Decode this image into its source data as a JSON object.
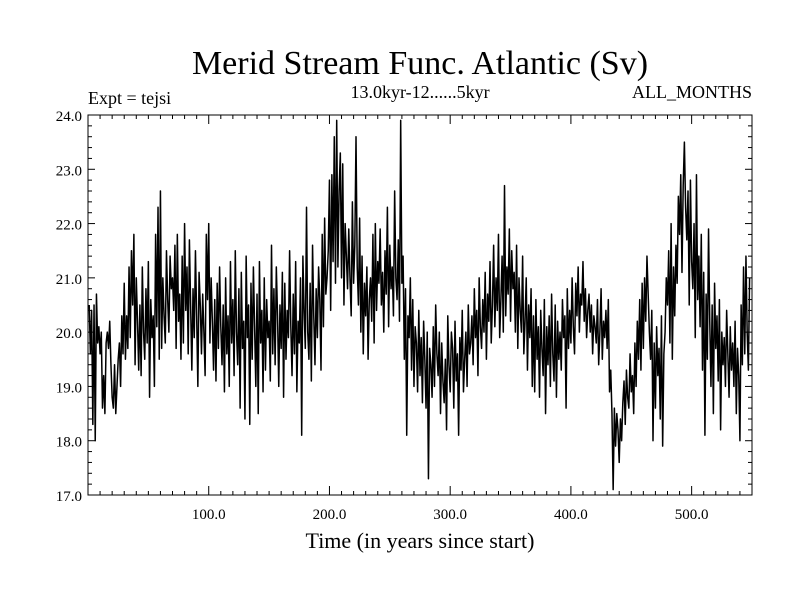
{
  "chart_data": {
    "type": "line",
    "title": "Merid Stream Func. Atlantic (Sv)",
    "subtitle": "13.0kyr-12......5kyr",
    "left_label": "Expt = tejsi",
    "right_label": "ALL_MONTHS",
    "xlabel": "Time (in years since start)",
    "ylabel": "",
    "xlim": [
      0,
      550
    ],
    "ylim": [
      17.0,
      24.0
    ],
    "xticks": [
      100,
      200,
      300,
      400,
      500
    ],
    "xtick_labels": [
      "100.0",
      "200.0",
      "300.0",
      "400.0",
      "500.0"
    ],
    "yticks": [
      17,
      18,
      19,
      20,
      21,
      22,
      23,
      24
    ],
    "ytick_labels": [
      "17.0",
      "18.0",
      "19.0",
      "20.0",
      "21.0",
      "22.0",
      "23.0",
      "24.0"
    ],
    "grid": false,
    "series": [
      {
        "name": "Merid Stream Func. Atlantic",
        "color": "#000000",
        "x_start": 1,
        "x_step": 1,
        "values": [
          20.5,
          19.6,
          20.4,
          18.3,
          20.5,
          18.0,
          20.7,
          19.8,
          20.1,
          19.6,
          20.0,
          18.6,
          19.2,
          18.5,
          19.8,
          20.0,
          19.7,
          20.2,
          19.4,
          18.8,
          18.6,
          19.4,
          18.5,
          19.0,
          19.5,
          19.8,
          19.0,
          20.3,
          19.6,
          20.9,
          19.5,
          20.3,
          19.7,
          21.2,
          19.9,
          21.5,
          20.5,
          21.8,
          19.4,
          21.0,
          20.2,
          19.3,
          20.5,
          19.2,
          21.2,
          20.0,
          19.5,
          20.8,
          19.8,
          21.3,
          18.8,
          20.6,
          19.9,
          20.3,
          19.0,
          21.8,
          20.1,
          22.3,
          19.5,
          22.6,
          19.7,
          21.0,
          20.3,
          19.8,
          21.5,
          20.6,
          20.0,
          21.4,
          20.8,
          21.0,
          20.4,
          21.6,
          19.7,
          21.8,
          20.2,
          20.7,
          19.5,
          21.4,
          19.8,
          22.0,
          20.4,
          21.2,
          19.6,
          21.7,
          20.5,
          19.3,
          20.8,
          19.9,
          21.5,
          20.3,
          19.0,
          21.1,
          20.5,
          19.6,
          20.7,
          20.0,
          19.2,
          21.8,
          20.6,
          22.0,
          19.8,
          21.0,
          20.2,
          19.3,
          20.6,
          19.1,
          20.9,
          19.7,
          21.2,
          20.1,
          19.4,
          20.5,
          18.9,
          21.0,
          19.6,
          20.3,
          19.0,
          21.3,
          19.8,
          20.6,
          19.2,
          21.5,
          20.0,
          19.4,
          20.8,
          18.6,
          21.1,
          19.7,
          20.2,
          18.4,
          21.4,
          19.9,
          20.5,
          18.3,
          20.9,
          19.5,
          21.2,
          20.1,
          19.0,
          20.7,
          18.5,
          21.3,
          19.8,
          20.4,
          18.9,
          21.0,
          19.3,
          20.6,
          19.9,
          20.2,
          19.1,
          21.6,
          19.6,
          20.8,
          19.4,
          21.2,
          20.3,
          19.0,
          20.5,
          19.7,
          21.1,
          18.8,
          20.9,
          19.5,
          20.4,
          19.9,
          21.5,
          20.1,
          19.2,
          20.7,
          19.6,
          21.3,
          18.9,
          20.2,
          19.8,
          21.0,
          18.1,
          21.4,
          20.4,
          19.7,
          22.3,
          20.0,
          19.5,
          20.9,
          19.1,
          21.6,
          20.3,
          19.4,
          20.8,
          19.9,
          21.2,
          20.6,
          19.3,
          21.8,
          20.1,
          22.1,
          20.7,
          21.0,
          21.5,
          22.8,
          20.4,
          22.9,
          21.3,
          23.6,
          20.9,
          23.9,
          21.2,
          22.6,
          23.3,
          21.0,
          23.1,
          20.5,
          22.0,
          21.4,
          20.8,
          21.9,
          21.0,
          20.3,
          22.4,
          20.9,
          21.6,
          23.6,
          21.2,
          20.5,
          22.1,
          20.0,
          21.4,
          19.6,
          20.9,
          20.3,
          21.2,
          19.5,
          20.6,
          21.0,
          20.2,
          21.8,
          19.8,
          22.0,
          20.4,
          21.3,
          20.9,
          21.9,
          20.5,
          21.1,
          20.0,
          21.5,
          20.7,
          22.3,
          20.1,
          21.6,
          20.8,
          21.2,
          20.3,
          22.6,
          21.0,
          20.6,
          21.7,
          20.2,
          23.9,
          20.9,
          21.4,
          19.5,
          20.8,
          18.1,
          20.3,
          19.9,
          21.0,
          19.3,
          20.6,
          19.0,
          20.1,
          19.8,
          18.9,
          20.4,
          19.2,
          19.9,
          18.7,
          20.2,
          19.5,
          18.6,
          20.0,
          17.3,
          19.7,
          19.4,
          18.8,
          20.1,
          19.0,
          20.5,
          19.6,
          19.2,
          20.0,
          18.5,
          19.8,
          19.1,
          18.7,
          19.5,
          18.2,
          20.3,
          19.4,
          18.9,
          20.0,
          19.7,
          18.6,
          20.2,
          19.1,
          19.6,
          18.1,
          19.9,
          19.3,
          20.4,
          18.9,
          19.5,
          20.0,
          19.0,
          20.5,
          19.6,
          19.8,
          20.3,
          19.4,
          20.8,
          19.9,
          20.4,
          19.2,
          21.0,
          20.1,
          19.7,
          20.6,
          20.0,
          21.1,
          19.5,
          20.7,
          20.2,
          21.3,
          19.8,
          20.5,
          21.6,
          20.1,
          21.0,
          20.4,
          21.8,
          19.9,
          20.6,
          21.4,
          20.0,
          22.7,
          20.3,
          21.2,
          20.7,
          21.9,
          20.2,
          21.5,
          20.8,
          21.1,
          20.0,
          21.6,
          19.7,
          21.0,
          20.4,
          20.0,
          21.4,
          19.6,
          20.2,
          21.0,
          19.3,
          20.5,
          19.9,
          20.8,
          19.0,
          20.3,
          18.9,
          20.6,
          19.5,
          20.1,
          18.8,
          20.4,
          19.7,
          19.2,
          20.6,
          18.5,
          20.1,
          19.4,
          20.3,
          19.0,
          20.7,
          19.6,
          19.1,
          20.5,
          18.8,
          20.2,
          19.5,
          20.0,
          19.3,
          20.6,
          19.9,
          20.3,
          18.6,
          20.8,
          19.7,
          20.4,
          19.8,
          21.0,
          20.1,
          19.6,
          20.9,
          20.3,
          21.2,
          20.0,
          20.7,
          20.5,
          21.3,
          20.2,
          20.8,
          19.9,
          20.4,
          20.7,
          20.0,
          20.5,
          19.6,
          20.3,
          20.1,
          19.8,
          20.6,
          19.4,
          20.0,
          20.8,
          19.5,
          20.2,
          19.9,
          20.4,
          19.7,
          20.6,
          18.9,
          19.3,
          18.5,
          17.1,
          18.6,
          17.9,
          18.5,
          18.2,
          17.6,
          18.4,
          18.0,
          18.7,
          19.1,
          18.3,
          19.3,
          18.8,
          18.6,
          19.6,
          18.9,
          19.2,
          18.5,
          19.8,
          19.0,
          20.2,
          19.5,
          20.6,
          19.3,
          20.9,
          19.7,
          21.0,
          20.2,
          21.4,
          20.7,
          20.0,
          19.5,
          20.4,
          18.0,
          19.8,
          18.6,
          20.1,
          19.2,
          19.7,
          18.4,
          20.3,
          17.9,
          19.6,
          20.0,
          21.0,
          20.5,
          21.5,
          19.8,
          22.0,
          19.5,
          21.2,
          20.3,
          21.6,
          20.9,
          22.5,
          21.8,
          22.9,
          21.1,
          22.7,
          23.5,
          22.3,
          21.7,
          22.6,
          20.5,
          22.8,
          21.3,
          20.8,
          22.0,
          19.9,
          22.9,
          20.6,
          21.4,
          20.1,
          21.8,
          19.3,
          21.1,
          18.1,
          20.7,
          19.5,
          21.9,
          20.2,
          19.0,
          20.5,
          18.5,
          20.9,
          19.7,
          20.3,
          19.1,
          20.6,
          18.2,
          20.0,
          19.4,
          19.9,
          19.0,
          20.4,
          19.6,
          18.8,
          20.1,
          19.3,
          19.8,
          19.0,
          20.2,
          18.5,
          19.7,
          19.2,
          18.0,
          20.5,
          19.4,
          21.2,
          19.6,
          21.4,
          20.0,
          19.3,
          21.0
        ]
      }
    ]
  }
}
